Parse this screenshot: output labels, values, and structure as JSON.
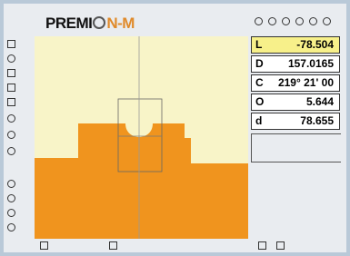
{
  "header": {
    "logo_left": "PREMI",
    "logo_right": "N-M"
  },
  "readouts": [
    {
      "label": "L",
      "value": "-78.504"
    },
    {
      "label": "D",
      "value": "157.0165"
    },
    {
      "label": "C",
      "value": "219° 21' 00"
    },
    {
      "label": "O",
      "value": "5.644"
    },
    {
      "label": "d",
      "value": "78.655"
    }
  ]
}
